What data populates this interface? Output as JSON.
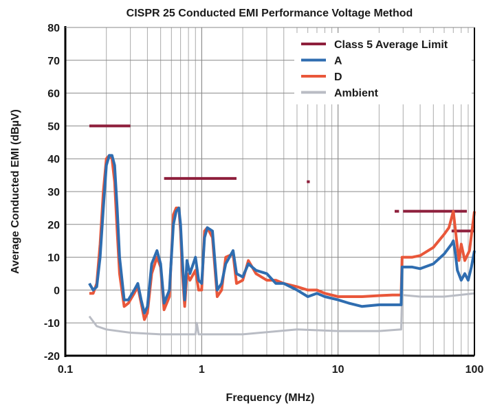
{
  "chart_data": {
    "type": "line",
    "title": "CISPR 25 Conducted EMI Performance Voltage Method",
    "xlabel": "Frequency (MHz)",
    "ylabel": "Average Conducted EMI (dBµV)",
    "xscale": "log",
    "xlim": [
      0.1,
      100
    ],
    "ylim": [
      -20,
      80
    ],
    "xticks": [
      "0.1",
      "1",
      "10",
      "100"
    ],
    "yticks": [
      "-20",
      "-10",
      "0",
      "10",
      "20",
      "30",
      "40",
      "50",
      "60",
      "70",
      "80"
    ],
    "grid": true,
    "legend_position": "top-right",
    "limit_segments": [
      {
        "x": [
          0.15,
          0.3
        ],
        "y": 50
      },
      {
        "x": [
          0.53,
          1.8
        ],
        "y": 34
      },
      {
        "x": [
          5.9,
          6.2
        ],
        "y": 33
      },
      {
        "x": [
          26,
          28
        ],
        "y": 24
      },
      {
        "x": [
          30,
          88
        ],
        "y": 24
      },
      {
        "x": [
          68,
          108
        ],
        "y": 18
      }
    ],
    "series": [
      {
        "name": "Class 5 Average Limit",
        "color": "#8e1f3c"
      },
      {
        "name": "A",
        "color": "#2f6db0",
        "x": [
          0.15,
          0.16,
          0.17,
          0.18,
          0.19,
          0.2,
          0.21,
          0.22,
          0.23,
          0.24,
          0.25,
          0.27,
          0.29,
          0.32,
          0.34,
          0.36,
          0.38,
          0.4,
          0.43,
          0.47,
          0.5,
          0.53,
          0.58,
          0.62,
          0.65,
          0.68,
          0.7,
          0.72,
          0.75,
          0.78,
          0.82,
          0.9,
          0.95,
          1.0,
          1.05,
          1.1,
          1.2,
          1.3,
          1.4,
          1.5,
          1.7,
          1.8,
          2.0,
          2.2,
          2.5,
          3.0,
          3.5,
          4,
          5,
          6,
          7,
          8,
          10,
          12,
          15,
          20,
          25,
          29,
          29.5,
          35,
          40,
          50,
          60,
          68,
          70,
          72,
          75,
          80,
          85,
          90,
          95,
          100
        ],
        "y": [
          2,
          0,
          1,
          10,
          25,
          38,
          41,
          41,
          38,
          25,
          10,
          -3,
          -3,
          0,
          2,
          -3,
          -7,
          -5,
          8,
          12,
          8,
          -4,
          0,
          20,
          24,
          25,
          20,
          10,
          -3,
          9,
          5,
          10,
          3,
          2,
          16,
          19,
          18,
          0,
          2,
          8,
          12,
          5,
          4,
          8,
          6,
          5,
          2,
          2,
          0,
          -2,
          -1,
          -2,
          -3,
          -4,
          -5,
          -4.5,
          -4.5,
          -4.5,
          7,
          7,
          6.5,
          8,
          11,
          14,
          15,
          12,
          6,
          3,
          5,
          3,
          7,
          12
        ]
      },
      {
        "name": "D",
        "color": "#e9573a",
        "x": [
          0.15,
          0.16,
          0.17,
          0.18,
          0.19,
          0.2,
          0.21,
          0.22,
          0.23,
          0.24,
          0.25,
          0.27,
          0.29,
          0.32,
          0.34,
          0.36,
          0.38,
          0.4,
          0.43,
          0.47,
          0.5,
          0.53,
          0.58,
          0.62,
          0.65,
          0.68,
          0.7,
          0.72,
          0.75,
          0.78,
          0.82,
          0.9,
          0.95,
          1.0,
          1.05,
          1.1,
          1.2,
          1.3,
          1.4,
          1.5,
          1.7,
          1.8,
          2.0,
          2.2,
          2.5,
          3.0,
          3.5,
          4,
          5,
          6,
          7,
          8,
          10,
          12,
          15,
          20,
          25,
          29,
          29.5,
          35,
          40,
          50,
          60,
          65,
          70,
          74,
          77,
          80,
          85,
          92,
          100
        ],
        "y": [
          -1,
          -1,
          2,
          14,
          30,
          40,
          41,
          40,
          33,
          18,
          5,
          -5,
          -4,
          -1,
          1,
          -4,
          -9,
          -7,
          5,
          10,
          7,
          -6,
          -2,
          23,
          25,
          25,
          18,
          6,
          -5,
          5,
          3,
          6,
          0,
          0,
          18,
          19,
          16,
          -2,
          0,
          10,
          11,
          2,
          3,
          9,
          5,
          3,
          3,
          2,
          1,
          0,
          0,
          -1,
          -2,
          -2,
          -2,
          -1.7,
          -1.5,
          -1.5,
          10,
          10,
          10.5,
          13,
          17,
          19,
          24,
          15,
          9,
          14,
          9,
          12,
          24
        ]
      },
      {
        "name": "Ambient",
        "color": "#b9bcc4",
        "x": [
          0.15,
          0.17,
          0.2,
          0.3,
          0.5,
          0.9,
          0.92,
          0.95,
          2,
          5,
          10,
          20,
          29,
          29.5,
          40,
          60,
          100
        ],
        "y": [
          -8,
          -11,
          -12,
          -13,
          -13.5,
          -13.5,
          -10,
          -13.5,
          -13.5,
          -12,
          -12.5,
          -12.5,
          -12,
          -1.5,
          -2,
          -2,
          -1
        ]
      }
    ]
  }
}
